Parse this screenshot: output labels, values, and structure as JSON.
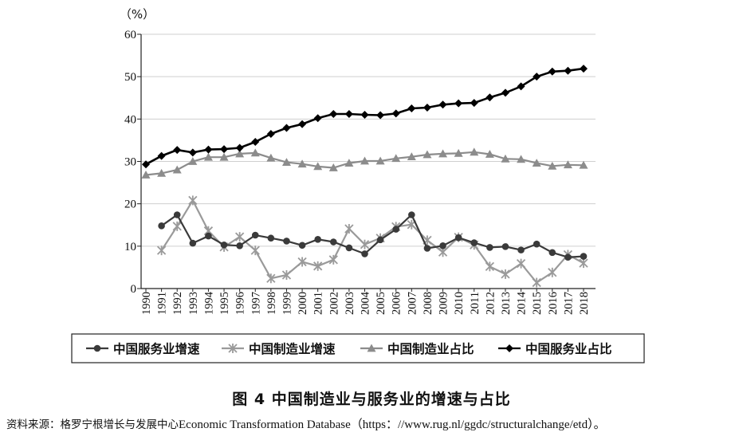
{
  "figure_title": "图 4   中国制造业与服务业的增速与占比",
  "source": {
    "label": "资料来源：格罗宁根增长与发展中心",
    "text": "Economic  Transformation  Database（https：//www.rug.nl/ggdc/structuralchange/etd）。"
  },
  "chart_data": {
    "type": "line",
    "ylabel": "（%）",
    "ylim": [
      0,
      60
    ],
    "yticks": [
      0,
      10,
      20,
      30,
      40,
      50,
      60
    ],
    "grid": true,
    "legend_position": "bottom",
    "x": [
      "1990",
      "1991",
      "1992",
      "1993",
      "1994",
      "1995",
      "1996",
      "1997",
      "1998",
      "1999",
      "2000",
      "2001",
      "2002",
      "2003",
      "2004",
      "2005",
      "2006",
      "2007",
      "2008",
      "2009",
      "2010",
      "2011",
      "2012",
      "2013",
      "2014",
      "2015",
      "2016",
      "2017",
      "2018"
    ],
    "series": [
      {
        "name": "中国服务业增速",
        "marker": "circle",
        "color": "#3a3a3a",
        "values": [
          null,
          14.8,
          17.4,
          10.7,
          12.4,
          10.3,
          10.1,
          12.6,
          11.9,
          11.2,
          10.2,
          11.6,
          11.0,
          9.6,
          8.2,
          11.5,
          14.0,
          17.4,
          9.5,
          10.1,
          12.0,
          10.8,
          9.7,
          9.9,
          9.1,
          10.5,
          8.5,
          7.4,
          7.6
        ]
      },
      {
        "name": "中国制造业增速",
        "marker": "x",
        "color": "#9a9a9a",
        "values": [
          null,
          9.0,
          14.7,
          20.8,
          13.6,
          9.8,
          12.2,
          9.0,
          2.4,
          3.2,
          6.3,
          5.3,
          6.8,
          14.1,
          10.4,
          11.9,
          14.6,
          15.1,
          11.4,
          8.6,
          12.1,
          10.3,
          5.2,
          3.4,
          5.9,
          1.4,
          3.8,
          8.0,
          6.0
        ]
      },
      {
        "name": "中国制造业占比",
        "marker": "triangle",
        "color": "#8c8c8c",
        "values": [
          26.8,
          27.2,
          28.0,
          30.0,
          31.0,
          31.0,
          31.8,
          32.0,
          30.8,
          29.8,
          29.4,
          28.8,
          28.5,
          29.6,
          30.1,
          30.1,
          30.7,
          31.1,
          31.6,
          31.8,
          31.9,
          32.2,
          31.7,
          30.6,
          30.5,
          29.6,
          28.9,
          29.2,
          29.1
        ]
      },
      {
        "name": "中国服务业占比",
        "marker": "diamond",
        "color": "#000000",
        "values": [
          29.3,
          31.3,
          32.7,
          32.1,
          32.8,
          32.9,
          33.2,
          34.6,
          36.5,
          37.9,
          38.8,
          40.2,
          41.2,
          41.2,
          41.0,
          40.9,
          41.3,
          42.5,
          42.7,
          43.4,
          43.7,
          43.8,
          45.1,
          46.2,
          47.7,
          50.0,
          51.2,
          51.4,
          51.9
        ]
      }
    ]
  }
}
